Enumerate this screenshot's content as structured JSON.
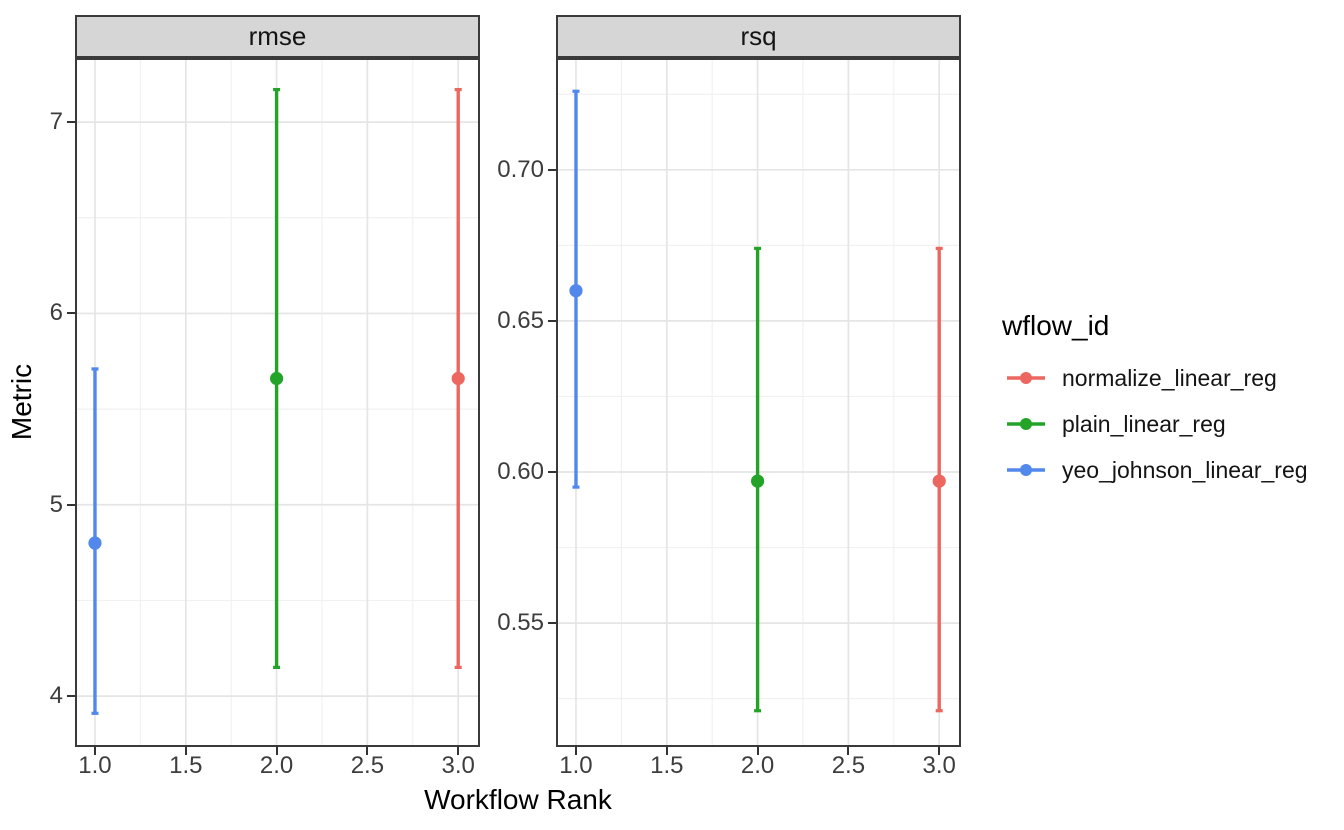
{
  "axes": {
    "x_title": "Workflow Rank",
    "y_title": "Metric"
  },
  "legend": {
    "title": "wflow_id",
    "entries": [
      {
        "label": "normalize_linear_reg",
        "color": "#EB675F"
      },
      {
        "label": "plain_linear_reg",
        "color": "#23A428"
      },
      {
        "label": "yeo_johnson_linear_reg",
        "color": "#5287EC"
      }
    ]
  },
  "chart_data": [
    {
      "type": "pointrange",
      "facet": "rmse",
      "xlabel": "Workflow Rank",
      "ylabel": "Metric",
      "grid": "major+minor",
      "legend_position": "right",
      "x_axis": {
        "lim": [
          0.89,
          3.12
        ],
        "ticks": [
          {
            "v": 1.0,
            "label": "1.0"
          },
          {
            "v": 1.5,
            "label": "1.5"
          },
          {
            "v": 2.0,
            "label": "2.0"
          },
          {
            "v": 2.5,
            "label": "2.5"
          },
          {
            "v": 3.0,
            "label": "3.0"
          }
        ],
        "minor": [
          1.25,
          1.75,
          2.25,
          2.75
        ]
      },
      "y_axis": {
        "lim": [
          3.734,
          7.335
        ],
        "ticks": [
          {
            "v": 4,
            "label": "4"
          },
          {
            "v": 5,
            "label": "5"
          },
          {
            "v": 6,
            "label": "6"
          },
          {
            "v": 7,
            "label": "7"
          }
        ],
        "minor": [
          4.5,
          5.5,
          6.5
        ]
      },
      "series": [
        {
          "name": "normalize_linear_reg",
          "color": "#EB675F",
          "x": 3,
          "y": 5.66,
          "ymin": 4.15,
          "ymax": 7.17
        },
        {
          "name": "plain_linear_reg",
          "color": "#23A428",
          "x": 2,
          "y": 5.66,
          "ymin": 4.15,
          "ymax": 7.17
        },
        {
          "name": "yeo_johnson_linear_reg",
          "color": "#5287EC",
          "x": 1,
          "y": 4.8,
          "ymin": 3.91,
          "ymax": 5.71
        }
      ]
    },
    {
      "type": "pointrange",
      "facet": "rsq",
      "xlabel": "Workflow Rank",
      "ylabel": "Metric",
      "grid": "major+minor",
      "legend_position": "right",
      "x_axis": {
        "lim": [
          0.89,
          3.12
        ],
        "ticks": [
          {
            "v": 1.0,
            "label": "1.0"
          },
          {
            "v": 1.5,
            "label": "1.5"
          },
          {
            "v": 2.0,
            "label": "2.0"
          },
          {
            "v": 2.5,
            "label": "2.5"
          },
          {
            "v": 3.0,
            "label": "3.0"
          }
        ],
        "minor": [
          1.25,
          1.75,
          2.25,
          2.75
        ]
      },
      "y_axis": {
        "lim": [
          0.509,
          0.737
        ],
        "ticks": [
          {
            "v": 0.55,
            "label": "0.55"
          },
          {
            "v": 0.6,
            "label": "0.60"
          },
          {
            "v": 0.65,
            "label": "0.65"
          },
          {
            "v": 0.7,
            "label": "0.70"
          }
        ],
        "minor": [
          0.525,
          0.575,
          0.625,
          0.675,
          0.725
        ]
      },
      "series": [
        {
          "name": "normalize_linear_reg",
          "color": "#EB675F",
          "x": 3,
          "y": 0.597,
          "ymin": 0.521,
          "ymax": 0.674
        },
        {
          "name": "plain_linear_reg",
          "color": "#23A428",
          "x": 2,
          "y": 0.597,
          "ymin": 0.521,
          "ymax": 0.674
        },
        {
          "name": "yeo_johnson_linear_reg",
          "color": "#5287EC",
          "x": 1,
          "y": 0.66,
          "ymin": 0.595,
          "ymax": 0.726
        }
      ]
    }
  ]
}
